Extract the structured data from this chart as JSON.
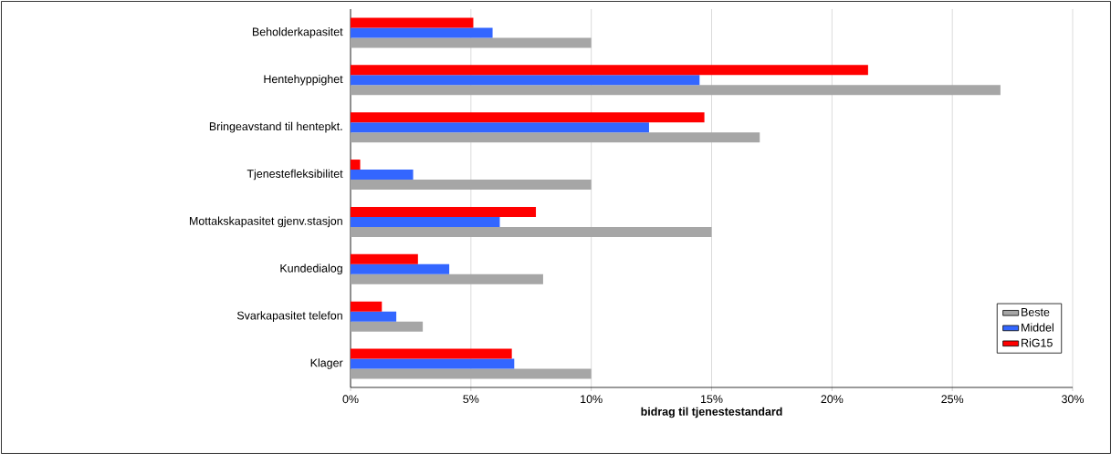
{
  "chart_data": {
    "type": "bar",
    "orientation": "horizontal",
    "xlabel": "bidrag til tjenestestandard",
    "categories": [
      "Beholderkapasitet",
      "Hentehyppighet",
      "Bringeavstand til hentepkt.",
      "Tjenestefleksibilitet",
      "Mottakskapasitet gjenv.stasjon",
      "Kundedialog",
      "Svarkapasitet telefon",
      "Klager"
    ],
    "series": [
      {
        "name": "Beste",
        "color": "#a6a6a6",
        "values": [
          10,
          27,
          17,
          10,
          15,
          8,
          3,
          10
        ]
      },
      {
        "name": "Middel",
        "color": "#3366ff",
        "values": [
          5.9,
          14.5,
          12.4,
          2.6,
          6.2,
          4.1,
          1.9,
          6.8
        ]
      },
      {
        "name": "RiG15",
        "color": "#ff0000",
        "values": [
          5.1,
          21.5,
          14.7,
          0.4,
          7.7,
          2.8,
          1.3,
          6.7
        ]
      }
    ],
    "xlim": [
      0,
      30
    ],
    "xticks": [
      {
        "value": 0,
        "label": "0%"
      },
      {
        "value": 5,
        "label": "5%"
      },
      {
        "value": 10,
        "label": "10%"
      },
      {
        "value": 15,
        "label": "15%"
      },
      {
        "value": 20,
        "label": "20%"
      },
      {
        "value": 25,
        "label": "25%"
      },
      {
        "value": 30,
        "label": "30%"
      }
    ],
    "grid": "x",
    "legend": "bottom right"
  }
}
